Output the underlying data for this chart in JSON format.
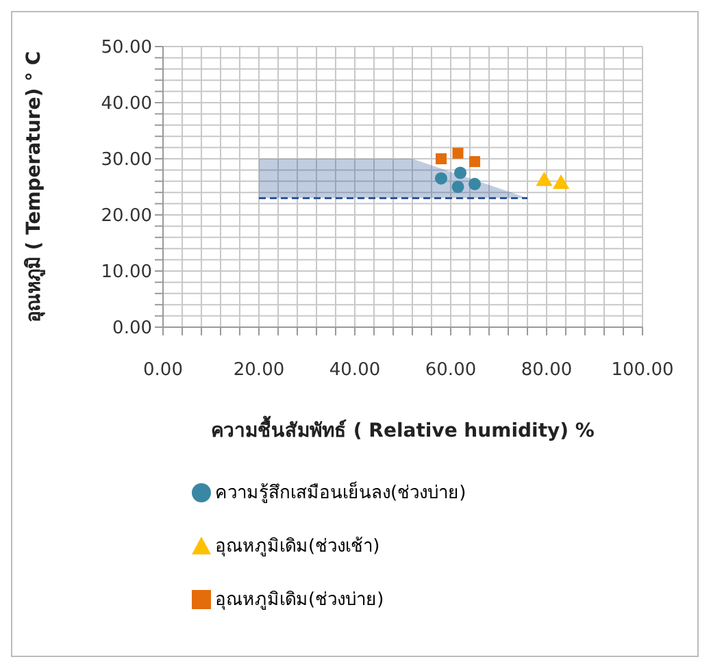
{
  "chart_data": {
    "type": "scatter",
    "xlabel": "ความชื้นสัมพัทธ์ ( Relative humidity)  %",
    "ylabel": "อุณหภูมิ ( Temperature)    ° C",
    "xlim": [
      0,
      100
    ],
    "ylim": [
      0,
      50
    ],
    "xticks": [
      {
        "value": 0,
        "label": "0.00"
      },
      {
        "value": 4,
        "label": null
      },
      {
        "value": 8,
        "label": null
      },
      {
        "value": 12,
        "label": null
      },
      {
        "value": 16,
        "label": null
      },
      {
        "value": 20,
        "label": "20.00"
      },
      {
        "value": 24,
        "label": null
      },
      {
        "value": 28,
        "label": null
      },
      {
        "value": 32,
        "label": null
      },
      {
        "value": 36,
        "label": null
      },
      {
        "value": 40,
        "label": "40.00"
      },
      {
        "value": 44,
        "label": null
      },
      {
        "value": 48,
        "label": null
      },
      {
        "value": 52,
        "label": null
      },
      {
        "value": 56,
        "label": null
      },
      {
        "value": 60,
        "label": "60.00"
      },
      {
        "value": 64,
        "label": null
      },
      {
        "value": 68,
        "label": null
      },
      {
        "value": 72,
        "label": null
      },
      {
        "value": 76,
        "label": null
      },
      {
        "value": 80,
        "label": "80.00"
      },
      {
        "value": 84,
        "label": null
      },
      {
        "value": 88,
        "label": null
      },
      {
        "value": 92,
        "label": null
      },
      {
        "value": 96,
        "label": null
      },
      {
        "value": 100,
        "label": "100.00"
      }
    ],
    "yticks": [
      {
        "value": 0,
        "label": "0.00"
      },
      {
        "value": 2,
        "label": null
      },
      {
        "value": 4,
        "label": null
      },
      {
        "value": 6,
        "label": null
      },
      {
        "value": 8,
        "label": null
      },
      {
        "value": 10,
        "label": "10.00"
      },
      {
        "value": 12,
        "label": null
      },
      {
        "value": 14,
        "label": null
      },
      {
        "value": 16,
        "label": null
      },
      {
        "value": 18,
        "label": null
      },
      {
        "value": 20,
        "label": "20.00"
      },
      {
        "value": 22,
        "label": null
      },
      {
        "value": 24,
        "label": null
      },
      {
        "value": 26,
        "label": null
      },
      {
        "value": 28,
        "label": null
      },
      {
        "value": 30,
        "label": "30.00"
      },
      {
        "value": 32,
        "label": null
      },
      {
        "value": 34,
        "label": null
      },
      {
        "value": 36,
        "label": null
      },
      {
        "value": 38,
        "label": null
      },
      {
        "value": 40,
        "label": "40.00"
      },
      {
        "value": 42,
        "label": null
      },
      {
        "value": 44,
        "label": null
      },
      {
        "value": 46,
        "label": null
      },
      {
        "value": 48,
        "label": null
      },
      {
        "value": 50,
        "label": "50.00"
      }
    ],
    "grid": true,
    "legend": "bottom left",
    "series": [
      {
        "type": "area",
        "color": "#2f5597",
        "line_style": "dashed",
        "x": [
          20,
          52,
          76
        ],
        "values": [
          30,
          30,
          23
        ]
      },
      {
        "type": "line",
        "color": "#2f5597",
        "line_style": "dashed",
        "x": [
          20,
          52,
          76
        ],
        "values": [
          23,
          23,
          23
        ]
      },
      {
        "name": "ความรู้สึกเสมือนเย็นลง(ช่วงบ่าย)",
        "color": "#3a87a4",
        "marker": "circle",
        "x": [
          58,
          61.5,
          65,
          62
        ],
        "values": [
          26.5,
          25,
          25.5,
          27.5
        ]
      },
      {
        "name": "อุณหภูมิเดิม(ช่วงเช้า)",
        "color": "#ffc000",
        "marker": "triangle",
        "x": [
          79.5,
          83
        ],
        "values": [
          26,
          25.5
        ]
      },
      {
        "name": "อุณหภูมิเดิม(ช่วงบ่าย)",
        "color": "#e46c0a",
        "marker": "square",
        "x": [
          58,
          61.5,
          65
        ],
        "values": [
          30,
          31,
          29.5
        ]
      }
    ]
  }
}
